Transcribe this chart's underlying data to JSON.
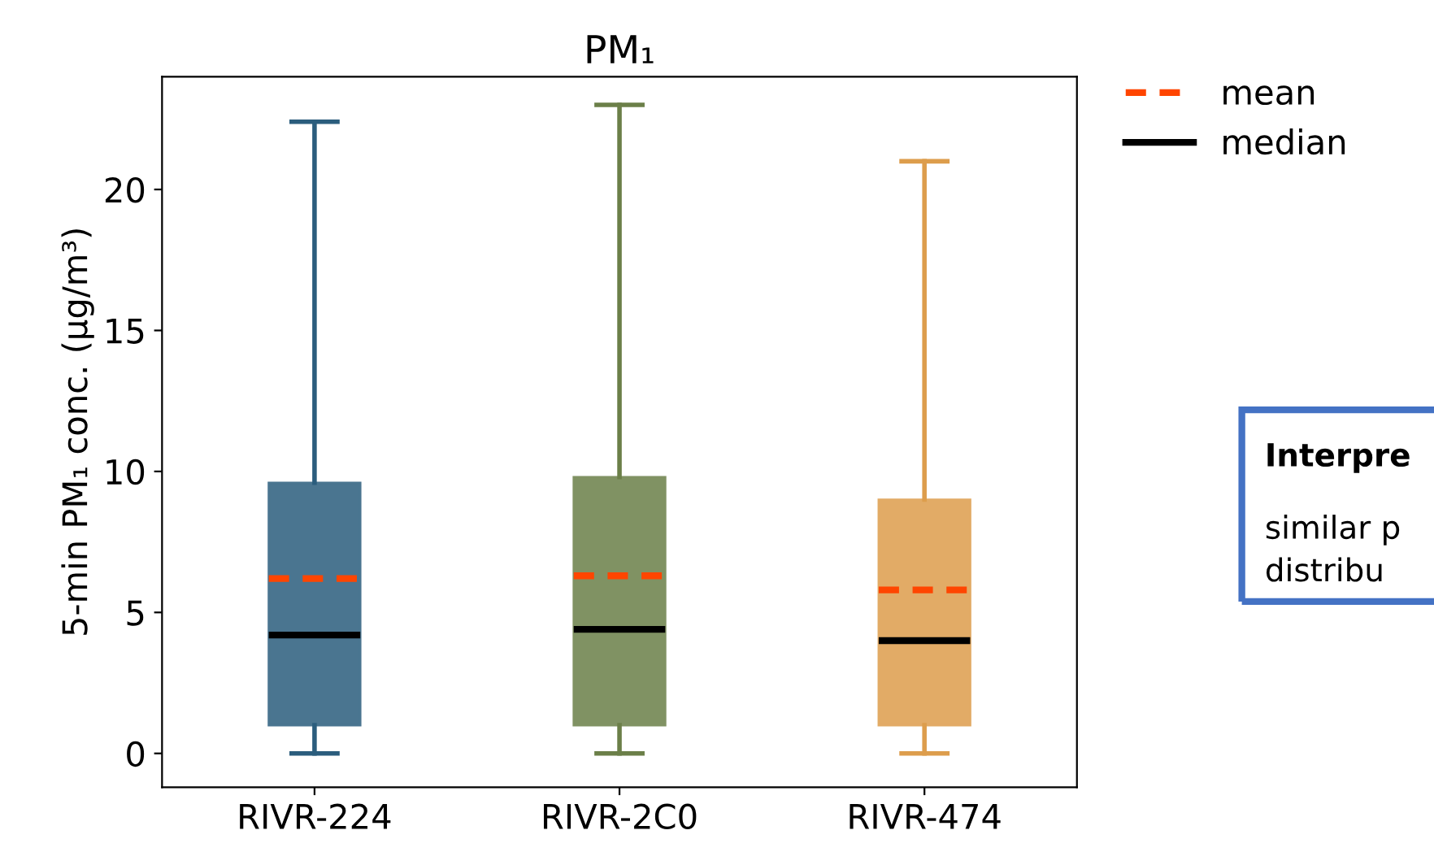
{
  "chart_data": {
    "type": "box",
    "title": "PM₁",
    "ylabel": "5-min PM₁ conc. (µg/m³)",
    "categories": [
      "RIVR-224",
      "RIVR-2C0",
      "RIVR-474"
    ],
    "colors": [
      "#2b5d7d",
      "#6b7f48",
      "#dd9d4c"
    ],
    "boxes": [
      {
        "low": 0,
        "q1": 1.0,
        "median": 4.2,
        "q3": 9.6,
        "high": 22.4,
        "mean": 6.2
      },
      {
        "low": 0,
        "q1": 1.0,
        "median": 4.4,
        "q3": 9.8,
        "high": 23.0,
        "mean": 6.3
      },
      {
        "low": 0,
        "q1": 1.0,
        "median": 4.0,
        "q3": 9.0,
        "high": 21.0,
        "mean": 5.8
      }
    ],
    "ylim": [
      -1.2,
      24
    ],
    "yticks": [
      0,
      5,
      10,
      15,
      20
    ],
    "grid": false,
    "annotations": [
      "mean",
      "median",
      "Interpre",
      "similar p\ndistribu"
    ]
  }
}
